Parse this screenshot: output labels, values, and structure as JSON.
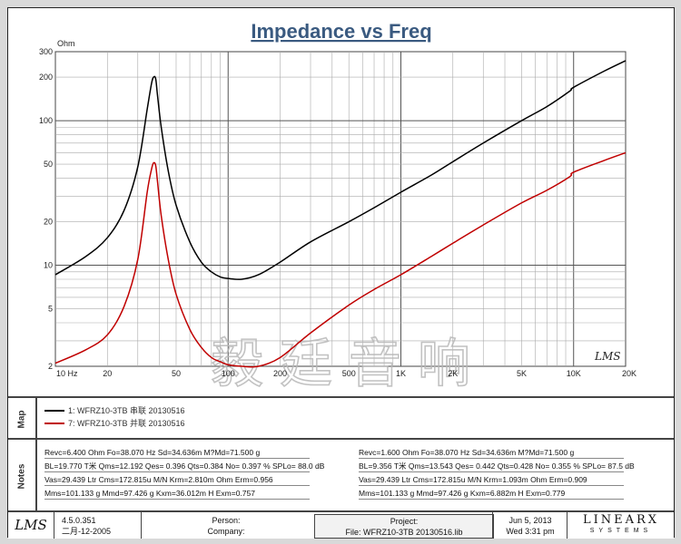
{
  "title": "Impedance vs Freq",
  "chart_data": {
    "type": "line",
    "title": "Impedance vs Freq",
    "ylabel": "Ohm",
    "xlabel": "",
    "x_scale": "log",
    "y_scale": "log",
    "xlim": [
      10,
      20000
    ],
    "ylim": [
      2,
      300
    ],
    "x_ticks": [
      {
        "value": 10,
        "label": "10 Hz"
      },
      {
        "value": 20,
        "label": "20"
      },
      {
        "value": 50,
        "label": "50"
      },
      {
        "value": 100,
        "label": "100"
      },
      {
        "value": 200,
        "label": "200"
      },
      {
        "value": 500,
        "label": "500"
      },
      {
        "value": 1000,
        "label": "1K"
      },
      {
        "value": 2000,
        "label": "2K"
      },
      {
        "value": 5000,
        "label": "5K"
      },
      {
        "value": 10000,
        "label": "10K"
      },
      {
        "value": 20000,
        "label": "20K"
      }
    ],
    "y_ticks": [
      {
        "value": 2,
        "label": "2"
      },
      {
        "value": 5,
        "label": "5"
      },
      {
        "value": 10,
        "label": "10"
      },
      {
        "value": 20,
        "label": "20"
      },
      {
        "value": 50,
        "label": "50"
      },
      {
        "value": 100,
        "label": "100"
      },
      {
        "value": 200,
        "label": "200"
      },
      {
        "value": 300,
        "label": "300"
      }
    ],
    "series": [
      {
        "name": "1: WFRZ10-3TB 串联 20130516",
        "color": "#000000",
        "x": [
          10,
          15,
          20,
          25,
          30,
          34,
          36,
          37,
          38.07,
          39,
          41,
          45,
          50,
          60,
          70,
          80,
          90,
          100,
          120,
          150,
          200,
          300,
          500,
          700,
          1000,
          1500,
          2000,
          3000,
          5000,
          7000,
          9500,
          10000,
          15000,
          20000
        ],
        "y": [
          8.6,
          11.5,
          15.5,
          24,
          48,
          120,
          180,
          200,
          195,
          150,
          90,
          45,
          26,
          14.5,
          10.5,
          9.0,
          8.3,
          8.1,
          8.0,
          8.6,
          10.5,
          14.5,
          20,
          25,
          32,
          42,
          52,
          70,
          100,
          125,
          160,
          170,
          220,
          260
        ]
      },
      {
        "name": "7: WFRZ10-3TB 并联 20130516",
        "color": "#c00000",
        "x": [
          10,
          15,
          20,
          25,
          30,
          34,
          36,
          37,
          38.07,
          39,
          41,
          45,
          50,
          60,
          70,
          80,
          90,
          100,
          120,
          150,
          200,
          300,
          500,
          700,
          1000,
          1500,
          2000,
          3000,
          5000,
          7000,
          9500,
          10000,
          15000,
          20000
        ],
        "y": [
          2.1,
          2.6,
          3.3,
          5.2,
          11,
          32,
          46,
          51,
          49,
          38,
          22,
          11,
          6.3,
          3.6,
          2.7,
          2.3,
          2.15,
          2.05,
          2.0,
          2.0,
          2.3,
          3.4,
          5.3,
          6.8,
          8.6,
          11.5,
          14.2,
          19,
          27,
          33,
          41,
          44,
          53,
          60
        ]
      }
    ]
  },
  "watermark": "毅廷音响",
  "legend": {
    "label": "Map",
    "items": [
      {
        "text": "1: WFRZ10-3TB 串联 20130516",
        "color": "#000000"
      },
      {
        "text": "7: WFRZ10-3TB 并联 20130516",
        "color": "#c00000"
      }
    ]
  },
  "notes": {
    "label": "Notes",
    "left": [
      "Revc=6.400 Ohm  Fo=38.070 Hz  Sd=34.636m M?Md=71.500 g",
      "BL=19.770 T米  Qms=12.192  Qes= 0.396  Qts=0.384  No= 0.397 %  SPLo= 88.0 dB",
      "Vas=29.439 Ltr  Cms=172.815u M/N  Krm=2.810m Ohm  Erm=0.956",
      "Mms=101.133 g  Mmd=97.426 g  Kxm=36.012m H  Exm=0.757"
    ],
    "right": [
      "Revc=1.600 Ohm  Fo=38.070 Hz  Sd=34.636m M?Md=71.500 g",
      "BL=9.356 T米  Qms=13.543  Qes= 0.442  Qts=0.428  No= 0.355 %  SPLo= 87.5 dB",
      "Vas=29.439 Ltr  Cms=172.815u M/N  Krm=1.093m Ohm  Erm=0.909",
      "Mms=101.133 g  Mmd=97.426 g  Kxm=6.882m H  Exm=0.779"
    ]
  },
  "footer": {
    "logo": "LMS",
    "version": "4.5.0.351",
    "version_date": "二月-12-2005",
    "person_label": "Person:",
    "company_label": "Company:",
    "project_label": "Project:",
    "file": "File: WFRZ10-3TB 20130516.lib",
    "date": "Jun  5, 2013",
    "time": "Wed  3:31 pm",
    "brand": "LINEARX",
    "brand_sub": "SYSTEMS"
  }
}
